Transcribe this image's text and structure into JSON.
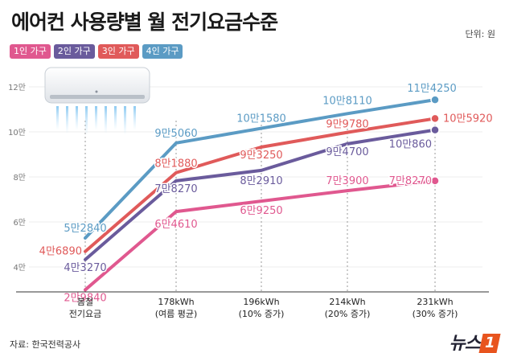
{
  "title": "에어컨 사용량별 월 전기요금수준",
  "unit_label": "단위: 원",
  "source": "자료: 한국전력공사",
  "logo": {
    "text": "뉴스",
    "badge": "1"
  },
  "colors": {
    "1인 가구": "#e0588f",
    "2인 가구": "#6a5b9c",
    "3인 가구": "#e05a5a",
    "4인 가구": "#5b9bc4"
  },
  "chart_data": {
    "type": "line",
    "categories": [
      "봄철\n전기요금",
      "178kWh\n(여름 평균)",
      "196kWh\n(10% 증가)",
      "214kWh\n(20% 증가)",
      "231kWh\n(30% 증가)"
    ],
    "ylim": [
      3,
      12.5
    ],
    "yticks": [
      4,
      6,
      8,
      10,
      12
    ],
    "ytick_labels": [
      "4만",
      "6만",
      "8만",
      "10만",
      "12만"
    ],
    "series": [
      {
        "name": "1인 가구",
        "color": "#e0588f",
        "values": [
          2.984,
          6.461,
          6.925,
          7.39,
          7.827
        ],
        "labels": [
          "2만9840",
          "6만4610",
          "6만9250",
          "7만3900",
          "7만8270"
        ]
      },
      {
        "name": "2인 가구",
        "color": "#6a5b9c",
        "values": [
          4.327,
          7.827,
          8.291,
          9.47,
          10.086
        ],
        "labels": [
          "4만3270",
          "7만8270",
          "8만2910",
          "9만4700",
          "10만860"
        ]
      },
      {
        "name": "3인 가구",
        "color": "#e05a5a",
        "values": [
          4.689,
          8.188,
          9.325,
          9.978,
          10.592
        ],
        "labels": [
          "4만6890",
          "8만1880",
          "9만3250",
          "9만9780",
          "10만5920"
        ]
      },
      {
        "name": "4인 가구",
        "color": "#5b9bc4",
        "values": [
          5.284,
          9.506,
          10.158,
          10.811,
          11.425
        ],
        "labels": [
          "5만2840",
          "9만5060",
          "10만1580",
          "10만8110",
          "11만4250"
        ]
      }
    ]
  }
}
